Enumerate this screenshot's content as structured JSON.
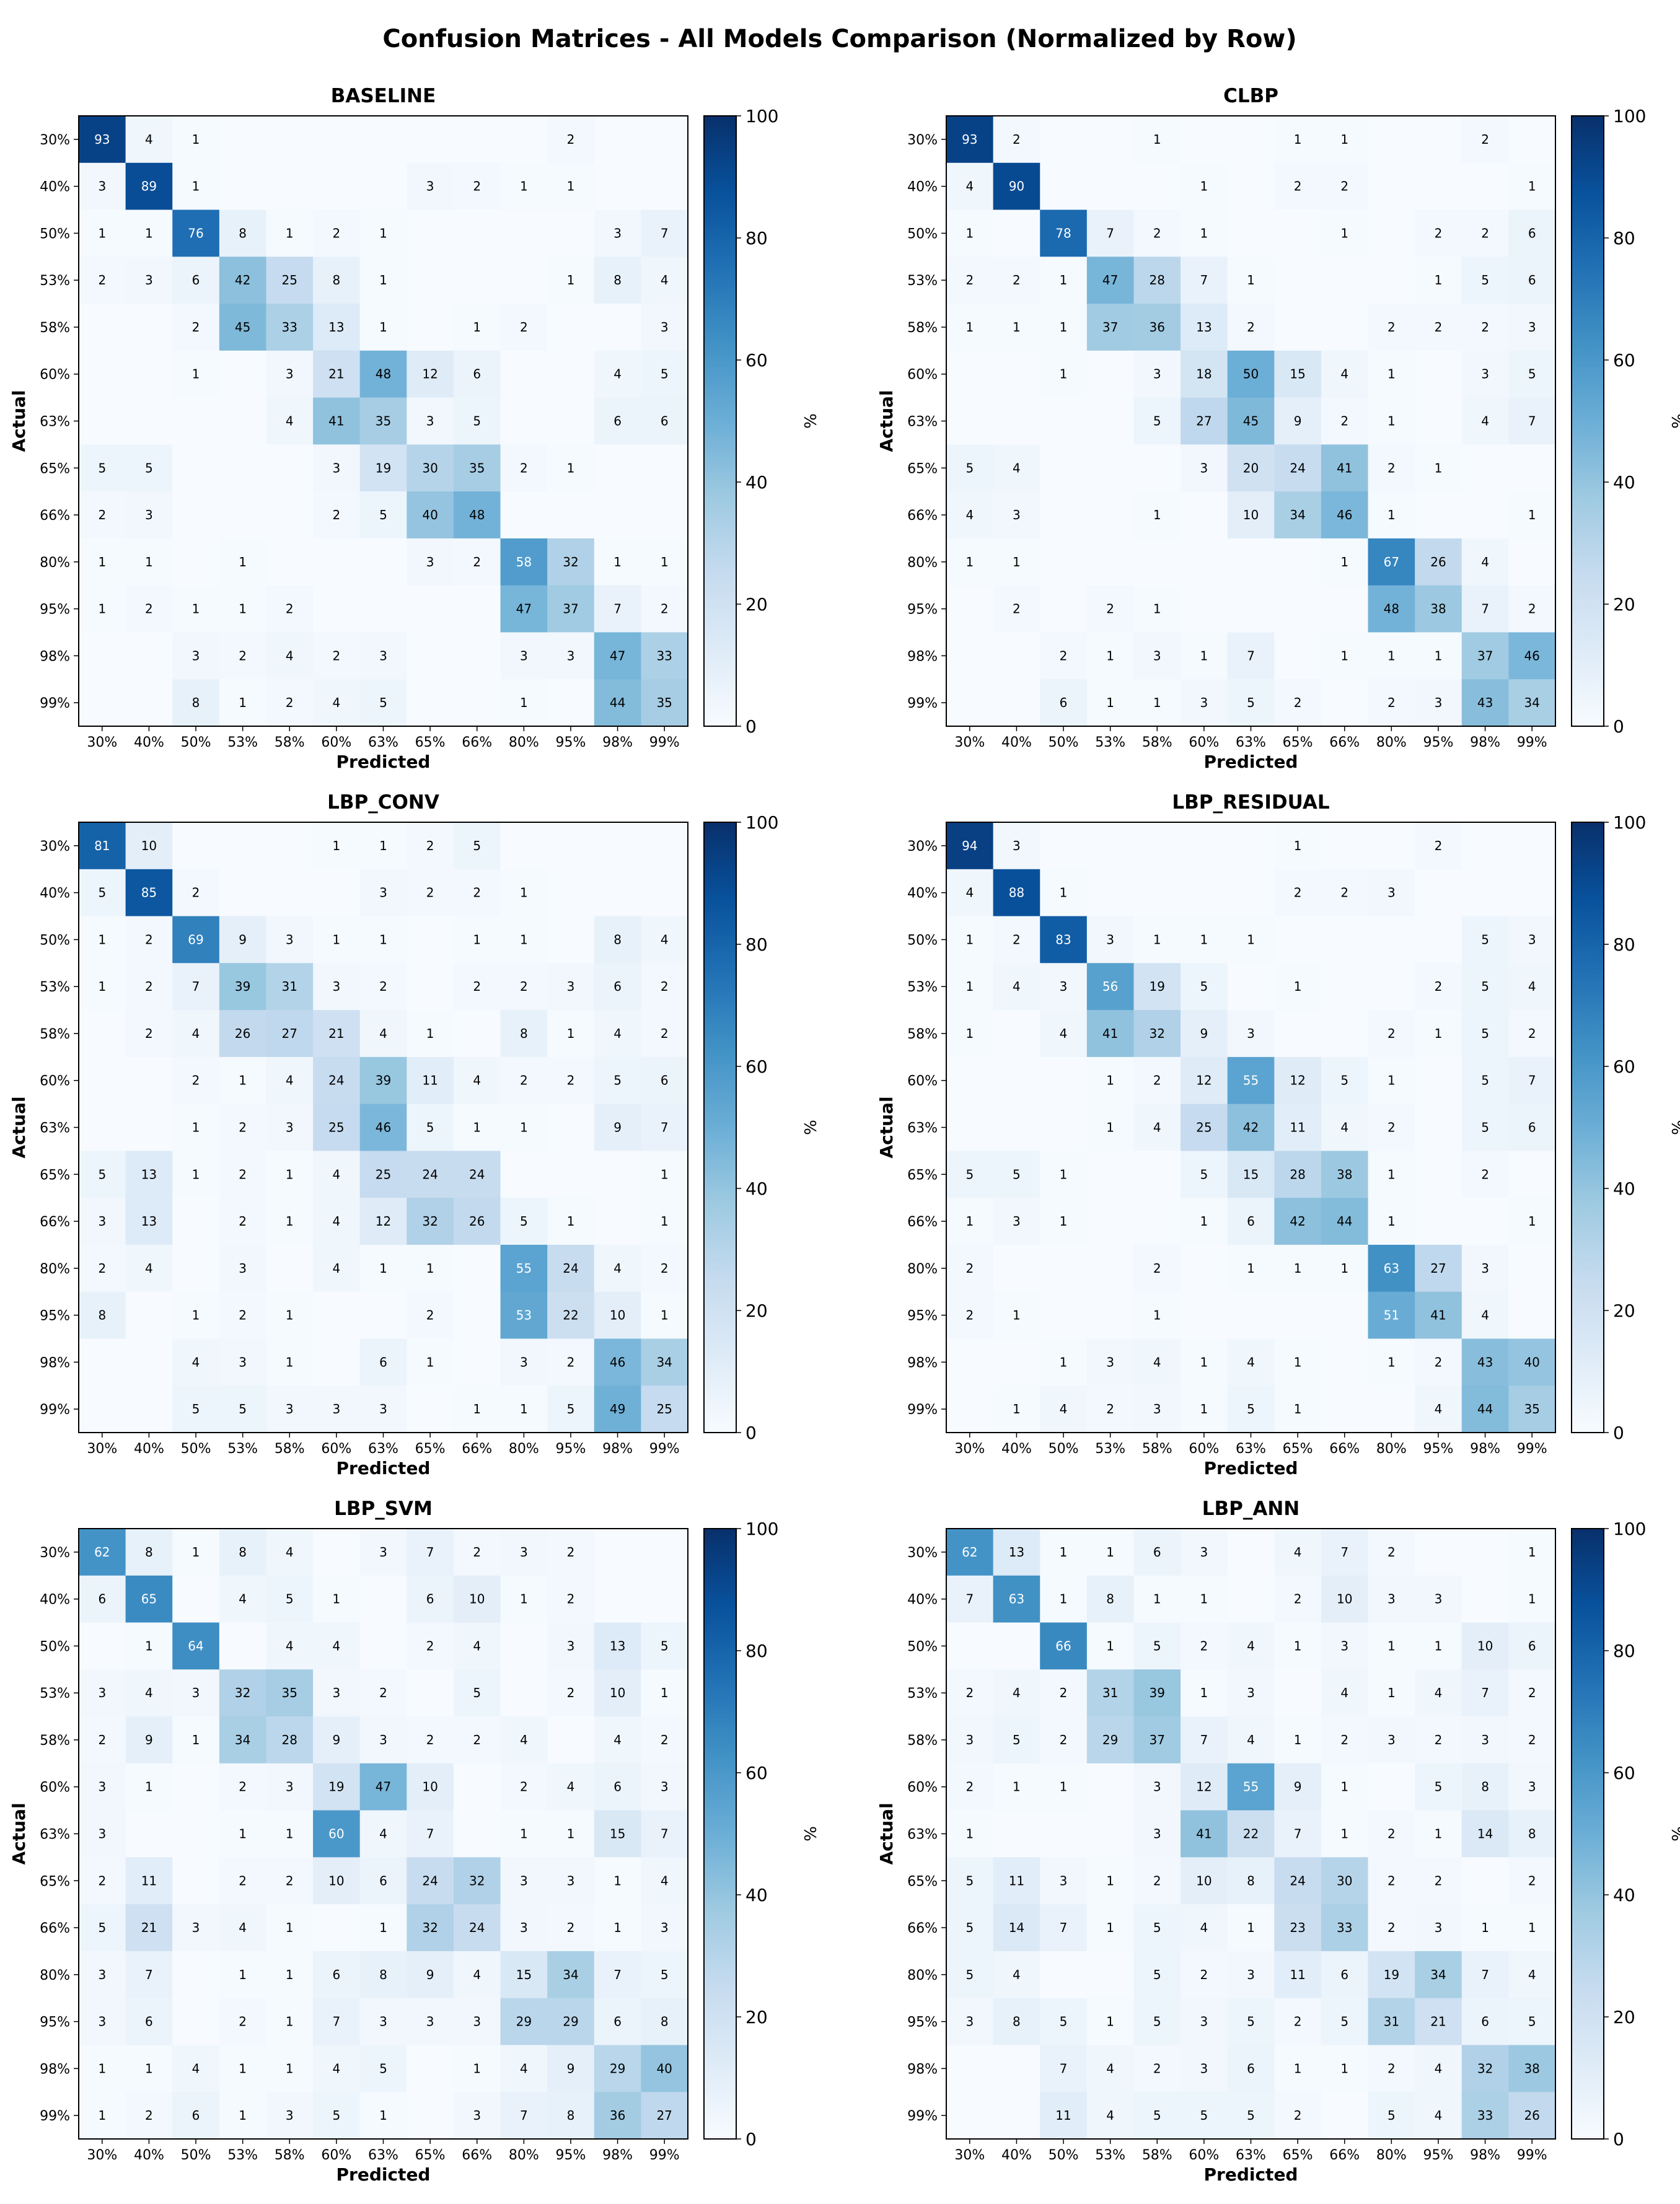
{
  "figure_title": "Confusion Matrices - All Models Comparison (Normalized by Row)",
  "colormap": {
    "name": "Blues",
    "light": "#f7fbff",
    "dark": "#08306b"
  },
  "chart_data": [
    {
      "type": "heatmap",
      "title": "BASELINE",
      "xlabel": "Predicted",
      "ylabel": "Actual",
      "colorbar_label": "%",
      "colorbar_ticks": [
        "0",
        "20",
        "40",
        "60",
        "80",
        "100"
      ],
      "vmin": 0,
      "vmax": 100,
      "x_labels": [
        "30%",
        "40%",
        "50%",
        "53%",
        "58%",
        "60%",
        "63%",
        "65%",
        "66%",
        "80%",
        "95%",
        "98%",
        "99%"
      ],
      "y_labels": [
        "30%",
        "40%",
        "50%",
        "53%",
        "58%",
        "60%",
        "63%",
        "65%",
        "66%",
        "80%",
        "95%",
        "98%",
        "99%"
      ],
      "values": [
        [
          93,
          4,
          1,
          0,
          0,
          0,
          0,
          0,
          0,
          0,
          2,
          0,
          0
        ],
        [
          3,
          89,
          1,
          0,
          0,
          0,
          0,
          3,
          2,
          1,
          1,
          0,
          0
        ],
        [
          1,
          1,
          76,
          8,
          1,
          2,
          1,
          0,
          0,
          0,
          0,
          3,
          7
        ],
        [
          2,
          3,
          6,
          42,
          25,
          8,
          1,
          0,
          0,
          0,
          1,
          8,
          4
        ],
        [
          0,
          0,
          2,
          45,
          33,
          13,
          1,
          0,
          1,
          2,
          0,
          0,
          3
        ],
        [
          0,
          0,
          1,
          0,
          3,
          21,
          48,
          12,
          6,
          0,
          0,
          4,
          5
        ],
        [
          0,
          0,
          0,
          0,
          4,
          41,
          35,
          3,
          5,
          0,
          0,
          6,
          6
        ],
        [
          5,
          5,
          0,
          0,
          0,
          3,
          19,
          30,
          35,
          2,
          1,
          0,
          0
        ],
        [
          2,
          3,
          0,
          0,
          0,
          2,
          5,
          40,
          48,
          0,
          0,
          0,
          0
        ],
        [
          1,
          1,
          0,
          1,
          0,
          0,
          0,
          3,
          2,
          58,
          32,
          1,
          1
        ],
        [
          1,
          2,
          1,
          1,
          2,
          0,
          0,
          0,
          0,
          47,
          37,
          7,
          2
        ],
        [
          0,
          0,
          3,
          2,
          4,
          2,
          3,
          0,
          0,
          3,
          3,
          47,
          33
        ],
        [
          0,
          0,
          8,
          1,
          2,
          4,
          5,
          0,
          0,
          1,
          0,
          44,
          35
        ]
      ]
    },
    {
      "type": "heatmap",
      "title": "CLBP",
      "xlabel": "Predicted",
      "ylabel": "Actual",
      "colorbar_label": "%",
      "colorbar_ticks": [
        "0",
        "20",
        "40",
        "60",
        "80",
        "100"
      ],
      "vmin": 0,
      "vmax": 100,
      "x_labels": [
        "30%",
        "40%",
        "50%",
        "53%",
        "58%",
        "60%",
        "63%",
        "65%",
        "66%",
        "80%",
        "95%",
        "98%",
        "99%"
      ],
      "y_labels": [
        "30%",
        "40%",
        "50%",
        "53%",
        "58%",
        "60%",
        "63%",
        "65%",
        "66%",
        "80%",
        "95%",
        "98%",
        "99%"
      ],
      "values": [
        [
          93,
          2,
          0,
          0,
          1,
          0,
          0,
          1,
          1,
          0,
          0,
          2,
          0
        ],
        [
          4,
          90,
          0,
          0,
          0,
          1,
          0,
          2,
          2,
          0,
          0,
          0,
          1
        ],
        [
          1,
          0,
          78,
          7,
          2,
          1,
          0,
          0,
          1,
          0,
          2,
          2,
          6
        ],
        [
          2,
          2,
          1,
          47,
          28,
          7,
          1,
          0,
          0,
          0,
          1,
          5,
          6
        ],
        [
          1,
          1,
          1,
          37,
          36,
          13,
          2,
          0,
          0,
          2,
          2,
          2,
          3
        ],
        [
          0,
          0,
          1,
          0,
          3,
          18,
          50,
          15,
          4,
          1,
          0,
          3,
          5
        ],
        [
          0,
          0,
          0,
          0,
          5,
          27,
          45,
          9,
          2,
          1,
          0,
          4,
          7
        ],
        [
          5,
          4,
          0,
          0,
          0,
          3,
          20,
          24,
          41,
          2,
          1,
          0,
          0
        ],
        [
          4,
          3,
          0,
          0,
          1,
          0,
          10,
          34,
          46,
          1,
          0,
          0,
          1
        ],
        [
          1,
          1,
          0,
          0,
          0,
          0,
          0,
          0,
          1,
          67,
          26,
          4,
          0
        ],
        [
          0,
          2,
          0,
          2,
          1,
          0,
          0,
          0,
          0,
          48,
          38,
          7,
          2
        ],
        [
          0,
          0,
          2,
          1,
          3,
          1,
          7,
          0,
          1,
          1,
          1,
          37,
          46
        ],
        [
          0,
          0,
          6,
          1,
          1,
          3,
          5,
          2,
          0,
          2,
          3,
          43,
          34
        ]
      ]
    },
    {
      "type": "heatmap",
      "title": "LBP_CONV",
      "xlabel": "Predicted",
      "ylabel": "Actual",
      "colorbar_label": "%",
      "colorbar_ticks": [
        "0",
        "20",
        "40",
        "60",
        "80",
        "100"
      ],
      "vmin": 0,
      "vmax": 100,
      "x_labels": [
        "30%",
        "40%",
        "50%",
        "53%",
        "58%",
        "60%",
        "63%",
        "65%",
        "66%",
        "80%",
        "95%",
        "98%",
        "99%"
      ],
      "y_labels": [
        "30%",
        "40%",
        "50%",
        "53%",
        "58%",
        "60%",
        "63%",
        "65%",
        "66%",
        "80%",
        "95%",
        "98%",
        "99%"
      ],
      "values": [
        [
          81,
          10,
          0,
          0,
          0,
          1,
          1,
          2,
          5,
          0,
          0,
          0,
          0
        ],
        [
          5,
          85,
          2,
          0,
          0,
          0,
          3,
          2,
          2,
          1,
          0,
          0,
          0
        ],
        [
          1,
          2,
          69,
          9,
          3,
          1,
          1,
          0,
          1,
          1,
          0,
          8,
          4
        ],
        [
          1,
          2,
          7,
          39,
          31,
          3,
          2,
          0,
          2,
          2,
          3,
          6,
          2
        ],
        [
          0,
          2,
          4,
          26,
          27,
          21,
          4,
          1,
          0,
          8,
          1,
          4,
          2
        ],
        [
          0,
          0,
          2,
          1,
          4,
          24,
          39,
          11,
          4,
          2,
          2,
          5,
          6
        ],
        [
          0,
          0,
          1,
          2,
          3,
          25,
          46,
          5,
          1,
          1,
          0,
          9,
          7
        ],
        [
          5,
          13,
          1,
          2,
          1,
          4,
          25,
          24,
          24,
          0,
          0,
          0,
          1
        ],
        [
          3,
          13,
          0,
          2,
          1,
          4,
          12,
          32,
          26,
          5,
          1,
          0,
          1
        ],
        [
          2,
          4,
          0,
          3,
          0,
          4,
          1,
          1,
          0,
          55,
          24,
          4,
          2
        ],
        [
          8,
          0,
          1,
          2,
          1,
          0,
          0,
          2,
          0,
          53,
          22,
          10,
          1
        ],
        [
          0,
          0,
          4,
          3,
          1,
          0,
          6,
          1,
          0,
          3,
          2,
          46,
          34
        ],
        [
          0,
          0,
          5,
          5,
          3,
          3,
          3,
          0,
          1,
          1,
          5,
          49,
          25
        ]
      ]
    },
    {
      "type": "heatmap",
      "title": "LBP_RESIDUAL",
      "xlabel": "Predicted",
      "ylabel": "Actual",
      "colorbar_label": "%",
      "colorbar_ticks": [
        "0",
        "20",
        "40",
        "60",
        "80",
        "100"
      ],
      "vmin": 0,
      "vmax": 100,
      "x_labels": [
        "30%",
        "40%",
        "50%",
        "53%",
        "58%",
        "60%",
        "63%",
        "65%",
        "66%",
        "80%",
        "95%",
        "98%",
        "99%"
      ],
      "y_labels": [
        "30%",
        "40%",
        "50%",
        "53%",
        "58%",
        "60%",
        "63%",
        "65%",
        "66%",
        "80%",
        "95%",
        "98%",
        "99%"
      ],
      "values": [
        [
          94,
          3,
          0,
          0,
          0,
          0,
          0,
          1,
          0,
          0,
          2,
          0,
          0
        ],
        [
          4,
          88,
          1,
          0,
          0,
          0,
          0,
          2,
          2,
          3,
          0,
          0,
          0
        ],
        [
          1,
          2,
          83,
          3,
          1,
          1,
          1,
          0,
          0,
          0,
          0,
          5,
          3
        ],
        [
          1,
          4,
          3,
          56,
          19,
          5,
          0,
          1,
          0,
          0,
          2,
          5,
          4
        ],
        [
          1,
          0,
          4,
          41,
          32,
          9,
          3,
          0,
          0,
          2,
          1,
          5,
          2
        ],
        [
          0,
          0,
          0,
          1,
          2,
          12,
          55,
          12,
          5,
          1,
          0,
          5,
          7
        ],
        [
          0,
          0,
          0,
          1,
          4,
          25,
          42,
          11,
          4,
          2,
          0,
          5,
          6
        ],
        [
          5,
          5,
          1,
          0,
          0,
          5,
          15,
          28,
          38,
          1,
          0,
          2,
          0
        ],
        [
          1,
          3,
          1,
          0,
          0,
          1,
          6,
          42,
          44,
          1,
          0,
          0,
          1
        ],
        [
          2,
          0,
          0,
          0,
          2,
          0,
          1,
          1,
          1,
          63,
          27,
          3,
          0
        ],
        [
          2,
          1,
          0,
          0,
          1,
          0,
          0,
          0,
          0,
          51,
          41,
          4,
          0
        ],
        [
          0,
          0,
          1,
          3,
          4,
          1,
          4,
          1,
          0,
          1,
          2,
          43,
          40
        ],
        [
          0,
          1,
          4,
          2,
          3,
          1,
          5,
          1,
          0,
          0,
          4,
          44,
          35
        ]
      ]
    },
    {
      "type": "heatmap",
      "title": "LBP_SVM",
      "xlabel": "Predicted",
      "ylabel": "Actual",
      "colorbar_label": "%",
      "colorbar_ticks": [
        "0",
        "20",
        "40",
        "60",
        "80",
        "100"
      ],
      "vmin": 0,
      "vmax": 100,
      "x_labels": [
        "30%",
        "40%",
        "50%",
        "53%",
        "58%",
        "60%",
        "63%",
        "65%",
        "66%",
        "80%",
        "95%",
        "98%",
        "99%"
      ],
      "y_labels": [
        "30%",
        "40%",
        "50%",
        "53%",
        "58%",
        "60%",
        "63%",
        "65%",
        "66%",
        "80%",
        "95%",
        "98%",
        "99%"
      ],
      "values": [
        [
          62,
          8,
          1,
          8,
          4,
          0,
          3,
          7,
          2,
          3,
          2,
          0,
          0
        ],
        [
          6,
          65,
          0,
          4,
          5,
          1,
          0,
          6,
          10,
          1,
          2,
          0,
          0
        ],
        [
          0,
          1,
          64,
          0,
          4,
          4,
          0,
          2,
          4,
          0,
          3,
          13,
          5
        ],
        [
          3,
          4,
          3,
          32,
          35,
          3,
          2,
          0,
          5,
          0,
          2,
          10,
          1
        ],
        [
          2,
          9,
          1,
          34,
          28,
          9,
          3,
          2,
          2,
          4,
          0,
          4,
          2
        ],
        [
          3,
          1,
          0,
          2,
          3,
          19,
          47,
          10,
          0,
          2,
          4,
          6,
          3
        ],
        [
          3,
          0,
          0,
          1,
          1,
          60,
          4,
          7,
          0,
          1,
          1,
          15,
          7
        ],
        [
          2,
          11,
          0,
          2,
          2,
          10,
          6,
          24,
          32,
          3,
          3,
          1,
          4
        ],
        [
          5,
          21,
          3,
          4,
          1,
          0,
          1,
          32,
          24,
          3,
          2,
          1,
          3
        ],
        [
          3,
          7,
          0,
          1,
          1,
          6,
          8,
          9,
          4,
          15,
          34,
          7,
          5
        ],
        [
          3,
          6,
          0,
          2,
          1,
          7,
          3,
          3,
          3,
          29,
          29,
          6,
          8
        ],
        [
          1,
          1,
          4,
          1,
          1,
          4,
          5,
          0,
          1,
          4,
          9,
          29,
          40
        ],
        [
          1,
          2,
          6,
          1,
          3,
          5,
          1,
          0,
          3,
          7,
          8,
          36,
          27
        ]
      ]
    },
    {
      "type": "heatmap",
      "title": "LBP_ANN",
      "xlabel": "Predicted",
      "ylabel": "Actual",
      "colorbar_label": "%",
      "colorbar_ticks": [
        "0",
        "20",
        "40",
        "60",
        "80",
        "100"
      ],
      "vmin": 0,
      "vmax": 100,
      "x_labels": [
        "30%",
        "40%",
        "50%",
        "53%",
        "58%",
        "60%",
        "63%",
        "65%",
        "66%",
        "80%",
        "95%",
        "98%",
        "99%"
      ],
      "y_labels": [
        "30%",
        "40%",
        "50%",
        "53%",
        "58%",
        "60%",
        "63%",
        "65%",
        "66%",
        "80%",
        "95%",
        "98%",
        "99%"
      ],
      "values": [
        [
          62,
          13,
          1,
          1,
          6,
          3,
          0,
          4,
          7,
          2,
          0,
          0,
          1
        ],
        [
          7,
          63,
          1,
          8,
          1,
          1,
          0,
          2,
          10,
          3,
          3,
          0,
          1
        ],
        [
          0,
          0,
          66,
          1,
          5,
          2,
          4,
          1,
          3,
          1,
          1,
          10,
          6
        ],
        [
          2,
          4,
          2,
          31,
          39,
          1,
          3,
          0,
          4,
          1,
          4,
          7,
          2
        ],
        [
          3,
          5,
          2,
          29,
          37,
          7,
          4,
          1,
          2,
          3,
          2,
          3,
          2
        ],
        [
          2,
          1,
          1,
          0,
          3,
          12,
          55,
          9,
          1,
          0,
          5,
          8,
          3
        ],
        [
          1,
          0,
          0,
          0,
          3,
          41,
          22,
          7,
          1,
          2,
          1,
          14,
          8
        ],
        [
          5,
          11,
          3,
          1,
          2,
          10,
          8,
          24,
          30,
          2,
          2,
          0,
          2
        ],
        [
          5,
          14,
          7,
          1,
          5,
          4,
          1,
          23,
          33,
          2,
          3,
          1,
          1
        ],
        [
          5,
          4,
          0,
          0,
          5,
          2,
          3,
          11,
          6,
          19,
          34,
          7,
          4
        ],
        [
          3,
          8,
          5,
          1,
          5,
          3,
          5,
          2,
          5,
          31,
          21,
          6,
          5
        ],
        [
          0,
          0,
          7,
          4,
          2,
          3,
          6,
          1,
          1,
          2,
          4,
          32,
          38
        ],
        [
          0,
          0,
          11,
          4,
          5,
          5,
          5,
          2,
          0,
          5,
          4,
          33,
          26
        ]
      ]
    }
  ]
}
